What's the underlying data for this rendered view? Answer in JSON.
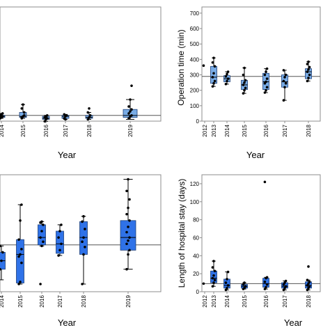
{
  "colors": {
    "box_light": "#79ace6",
    "box_dark": "#2f72e8",
    "box_stroke": "#1c3f78",
    "median_line": "#000000",
    "reference_line": "#555555",
    "frame": "#8c8c8c",
    "point": "#000000"
  },
  "chart_data": [
    {
      "id": "top-left",
      "type": "box",
      "title": "",
      "xlabel": "Year",
      "ylabel": "",
      "visible_ticks": [
        "2014",
        "2015",
        "2016",
        "2017",
        "2018",
        "2019"
      ],
      "y_scale": {
        "v0": 0,
        "y0": 170,
        "v1": 100,
        "y1": 28
      },
      "reference_value": 3,
      "boxes": [
        {
          "x": "2014",
          "q1": 1,
          "median": 2,
          "q3": 3,
          "lower": 0,
          "upper": 5,
          "points": [
            0,
            1,
            2,
            3,
            4,
            5,
            2,
            1
          ]
        },
        {
          "x": "2015",
          "q1": 1,
          "median": 2,
          "q3": 6,
          "lower": 0,
          "upper": 14,
          "points": [
            0,
            2,
            6,
            10,
            14,
            3,
            1
          ]
        },
        {
          "x": "2016",
          "q1": -1,
          "median": 0,
          "q3": 2,
          "lower": -3,
          "upper": 3,
          "points": [
            -3,
            -1,
            0,
            1,
            2,
            3
          ]
        },
        {
          "x": "2017",
          "q1": 0,
          "median": 2,
          "q3": 3,
          "lower": -1,
          "upper": 4,
          "points": [
            0,
            2,
            3,
            4,
            -1
          ]
        },
        {
          "x": "2018",
          "q1": 0,
          "median": 1,
          "q3": 3,
          "lower": -1,
          "upper": 6,
          "points": [
            -1,
            1,
            3,
            6,
            10
          ]
        },
        {
          "x": "2019",
          "q1": 1,
          "median": 3,
          "q3": 9,
          "lower": -1,
          "upper": 19,
          "points": [
            0,
            2,
            3,
            5,
            7,
            9,
            12,
            19,
            33
          ]
        }
      ]
    },
    {
      "id": "top-right",
      "type": "box",
      "title": "",
      "xlabel": "Year",
      "ylabel": "Operation time (min)",
      "visible_ticks": [
        "2012",
        "2013",
        "2014",
        "2015",
        "2016",
        "2017",
        "2018"
      ],
      "y_ticks": [
        0,
        100,
        200,
        300,
        400,
        500,
        600,
        700
      ],
      "ylim": [
        0,
        740
      ],
      "reference_value": 290,
      "boxes": [
        {
          "x": "2012",
          "q1": 360,
          "median": 360,
          "q3": 360,
          "lower": 360,
          "upper": 360,
          "points": [
            360
          ]
        },
        {
          "x": "2013",
          "q1": 245,
          "median": 285,
          "q3": 355,
          "lower": 225,
          "upper": 410,
          "points": [
            225,
            245,
            260,
            285,
            310,
            355,
            380,
            410
          ]
        },
        {
          "x": "2014",
          "q1": 255,
          "median": 275,
          "q3": 295,
          "lower": 240,
          "upper": 320,
          "points": [
            240,
            260,
            275,
            290,
            305,
            320
          ]
        },
        {
          "x": "2015",
          "q1": 205,
          "median": 235,
          "q3": 265,
          "lower": 180,
          "upper": 345,
          "points": [
            180,
            200,
            215,
            235,
            250,
            265,
            300,
            345
          ]
        },
        {
          "x": "2016",
          "q1": 205,
          "median": 255,
          "q3": 310,
          "lower": 185,
          "upper": 340,
          "points": [
            185,
            200,
            220,
            245,
            255,
            275,
            300,
            320,
            340
          ]
        },
        {
          "x": "2017",
          "q1": 220,
          "median": 255,
          "q3": 300,
          "lower": 135,
          "upper": 330,
          "points": [
            135,
            220,
            245,
            260,
            285,
            300,
            330
          ]
        },
        {
          "x": "2018",
          "q1": 275,
          "median": 320,
          "q3": 340,
          "lower": 260,
          "upper": 385,
          "points": [
            260,
            280,
            300,
            320,
            335,
            350,
            370,
            385
          ]
        }
      ]
    },
    {
      "id": "bottom-left",
      "type": "box",
      "title": "",
      "xlabel": "Year",
      "ylabel": "",
      "visible_ticks": [
        "2014",
        "2015",
        "2016",
        "2017",
        "2018",
        "2019"
      ],
      "y_scale": {
        "v0": 0,
        "y0": 408,
        "v1": 100,
        "y1": 256
      },
      "reference_value": 37,
      "boxes": [
        {
          "x": "2014",
          "q1": 14,
          "median": 22,
          "q3": 30,
          "lower": 4,
          "upper": 36,
          "points": [
            14,
            22,
            30,
            36
          ]
        },
        {
          "x": "2015",
          "q1": 1,
          "median": 28,
          "q3": 42,
          "lower": 0,
          "upper": 75,
          "points": [
            0,
            2,
            20,
            26,
            28,
            33,
            42,
            60,
            75
          ]
        },
        {
          "x": "2016",
          "q1": 37,
          "median": 44,
          "q3": 56,
          "lower": 36,
          "upper": 59,
          "points": [
            0,
            36,
            40,
            44,
            50,
            56,
            58,
            59
          ]
        },
        {
          "x": "2017",
          "q1": 29,
          "median": 38,
          "q3": 50,
          "lower": 27,
          "upper": 56,
          "points": [
            27,
            32,
            38,
            44,
            50,
            56
          ]
        },
        {
          "x": "2018",
          "q1": 28,
          "median": 44,
          "q3": 59,
          "lower": 0,
          "upper": 64,
          "points": [
            0,
            28,
            35,
            40,
            44,
            52,
            59,
            64
          ]
        },
        {
          "x": "2019",
          "q1": 32,
          "median": 44,
          "q3": 60,
          "lower": 14,
          "upper": 99,
          "points": [
            14,
            28,
            32,
            38,
            41,
            44,
            49,
            54,
            60,
            66,
            72,
            80,
            88,
            99
          ]
        }
      ]
    },
    {
      "id": "bottom-right",
      "type": "box",
      "title": "",
      "xlabel": "Year",
      "ylabel": "Length of hospital stay (days)",
      "visible_ticks": [
        "2012",
        "2013",
        "2014",
        "2015",
        "2016",
        "2017",
        "2018"
      ],
      "y_ticks": [
        0,
        20,
        40,
        60,
        80,
        100,
        120
      ],
      "ylim": [
        0,
        130
      ],
      "reference_value": 9,
      "boxes": [
        {
          "x": "2012",
          "q1": 9,
          "median": 9,
          "q3": 9,
          "lower": 9,
          "upper": 9,
          "points": [
            9
          ]
        },
        {
          "x": "2013",
          "q1": 10,
          "median": 15,
          "q3": 23,
          "lower": 6,
          "upper": 34,
          "points": [
            6,
            10,
            13,
            15,
            18,
            23,
            27,
            34
          ]
        },
        {
          "x": "2014",
          "q1": 4,
          "median": 7,
          "q3": 14,
          "lower": 2,
          "upper": 22,
          "points": [
            2,
            4,
            7,
            10,
            14,
            22
          ]
        },
        {
          "x": "2015",
          "q1": 4,
          "median": 6,
          "q3": 8,
          "lower": 3,
          "upper": 10,
          "points": [
            3,
            4,
            6,
            8,
            10
          ]
        },
        {
          "x": "2016",
          "q1": 5,
          "median": 9,
          "q3": 15,
          "lower": 3,
          "upper": 16,
          "points": [
            3,
            5,
            8,
            11,
            15,
            16,
            122
          ]
        },
        {
          "x": "2017",
          "q1": 4,
          "median": 6,
          "q3": 10,
          "lower": 2,
          "upper": 12,
          "points": [
            2,
            4,
            6,
            8,
            10,
            12
          ]
        },
        {
          "x": "2018",
          "q1": 4,
          "median": 7,
          "q3": 11,
          "lower": 2,
          "upper": 13,
          "points": [
            2,
            4,
            6,
            7,
            9,
            11,
            13,
            28
          ]
        }
      ]
    }
  ]
}
